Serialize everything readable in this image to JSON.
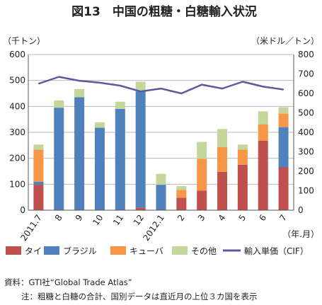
{
  "chart_data": {
    "type": "bar",
    "title": "図13　中国の粗糖・白糖輸入状況",
    "y_left_unit": "（千トン）",
    "y_right_unit": "（米ドル／トン）",
    "x_unit": "（年.月）",
    "categories": [
      "2011.7",
      "8",
      "9",
      "10",
      "11",
      "12",
      "2012.1",
      "2",
      "3",
      "4",
      "5",
      "6",
      "7"
    ],
    "ylim_left": [
      0,
      600
    ],
    "ylim_right": [
      0,
      800
    ],
    "yticks_left": [
      "0",
      "100",
      "200",
      "300",
      "400",
      "500",
      "600"
    ],
    "yticks_right": [
      "0",
      "100",
      "200",
      "300",
      "400",
      "500",
      "600",
      "700",
      "800"
    ],
    "stacked": true,
    "grid": true,
    "legend_position": "bottom",
    "series": [
      {
        "name": "タイ",
        "type": "bar",
        "color": "#c0504d",
        "values": [
          98,
          0,
          0,
          0,
          0,
          10,
          0,
          48,
          75,
          148,
          175,
          268,
          165
        ]
      },
      {
        "name": "ブラジル",
        "type": "bar",
        "color": "#4f81bd",
        "values": [
          12,
          395,
          435,
          318,
          390,
          448,
          98,
          0,
          0,
          0,
          0,
          0,
          155
        ]
      },
      {
        "name": "キューバ",
        "type": "bar",
        "color": "#f79646",
        "values": [
          123,
          0,
          0,
          0,
          0,
          0,
          0,
          30,
          123,
          95,
          58,
          63,
          52
        ]
      },
      {
        "name": "その他",
        "type": "bar",
        "color": "#c3d69b",
        "values": [
          20,
          28,
          32,
          20,
          28,
          37,
          42,
          15,
          65,
          70,
          20,
          50,
          25
        ]
      },
      {
        "name": "輸入単価（CIF）",
        "type": "line",
        "axis": "right",
        "color": "#5b5b9b",
        "values": [
          650,
          685,
          665,
          655,
          640,
          610,
          625,
          600,
          645,
          625,
          660,
          635,
          620
        ]
      }
    ]
  },
  "notes": {
    "source": "資料：GTI社“Global Trade Atlas”",
    "note": "注：粗糖と白糖の合計、国別データは直近月の上位３カ国を表示"
  }
}
